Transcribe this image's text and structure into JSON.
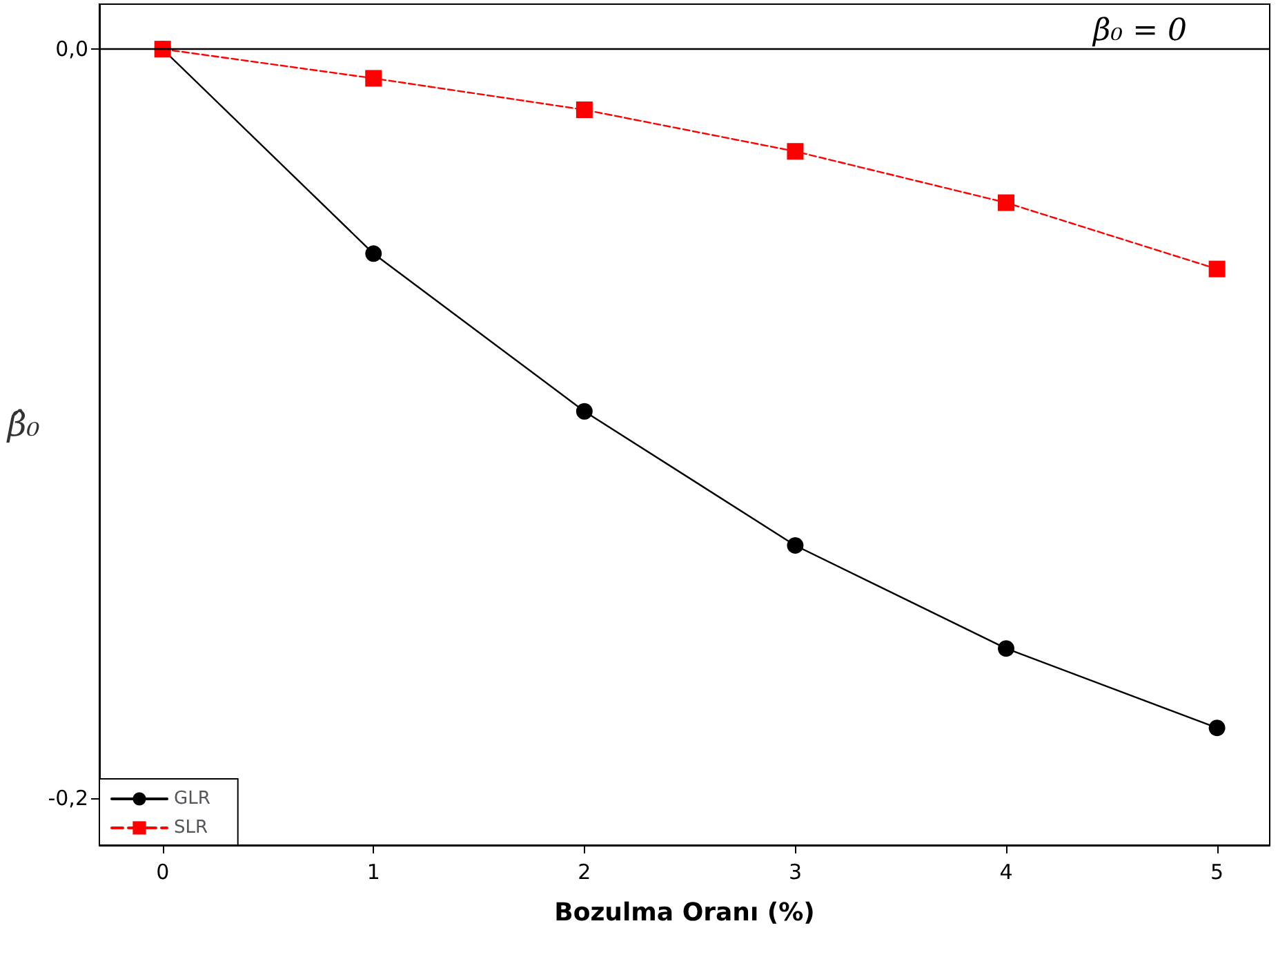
{
  "chart_data": {
    "type": "line",
    "xlabel": "Bozulma Oranı (%)",
    "ylabel": "β̂₀",
    "x": [
      0,
      1,
      2,
      3,
      4,
      5
    ],
    "series": [
      {
        "name": "GLR",
        "color": "#000000",
        "marker": "circle",
        "line_style": "solid",
        "values": [
          0,
          -0.0546,
          -0.0967,
          -0.1325,
          -0.16,
          -0.1812
        ]
      },
      {
        "name": "SLR",
        "color": "#ff0000",
        "marker": "square",
        "line_style": "dashed",
        "values": [
          0,
          -0.0078,
          -0.0162,
          -0.0273,
          -0.041,
          -0.0587
        ]
      }
    ],
    "xlim": [
      -0.3,
      5.25
    ],
    "xticks": [
      0,
      1,
      2,
      3,
      4,
      5
    ],
    "ylim": [
      -0.2125,
      0.012
    ],
    "yticks": [
      {
        "value": 0,
        "label": "0,0"
      },
      {
        "value": -0.2,
        "label": "-0,2"
      }
    ],
    "ref_lines": [
      {
        "axis": "y",
        "value": 0,
        "label": "β₀ = 0",
        "color": "#000000"
      }
    ],
    "grid": false,
    "legend": "bottom left"
  }
}
